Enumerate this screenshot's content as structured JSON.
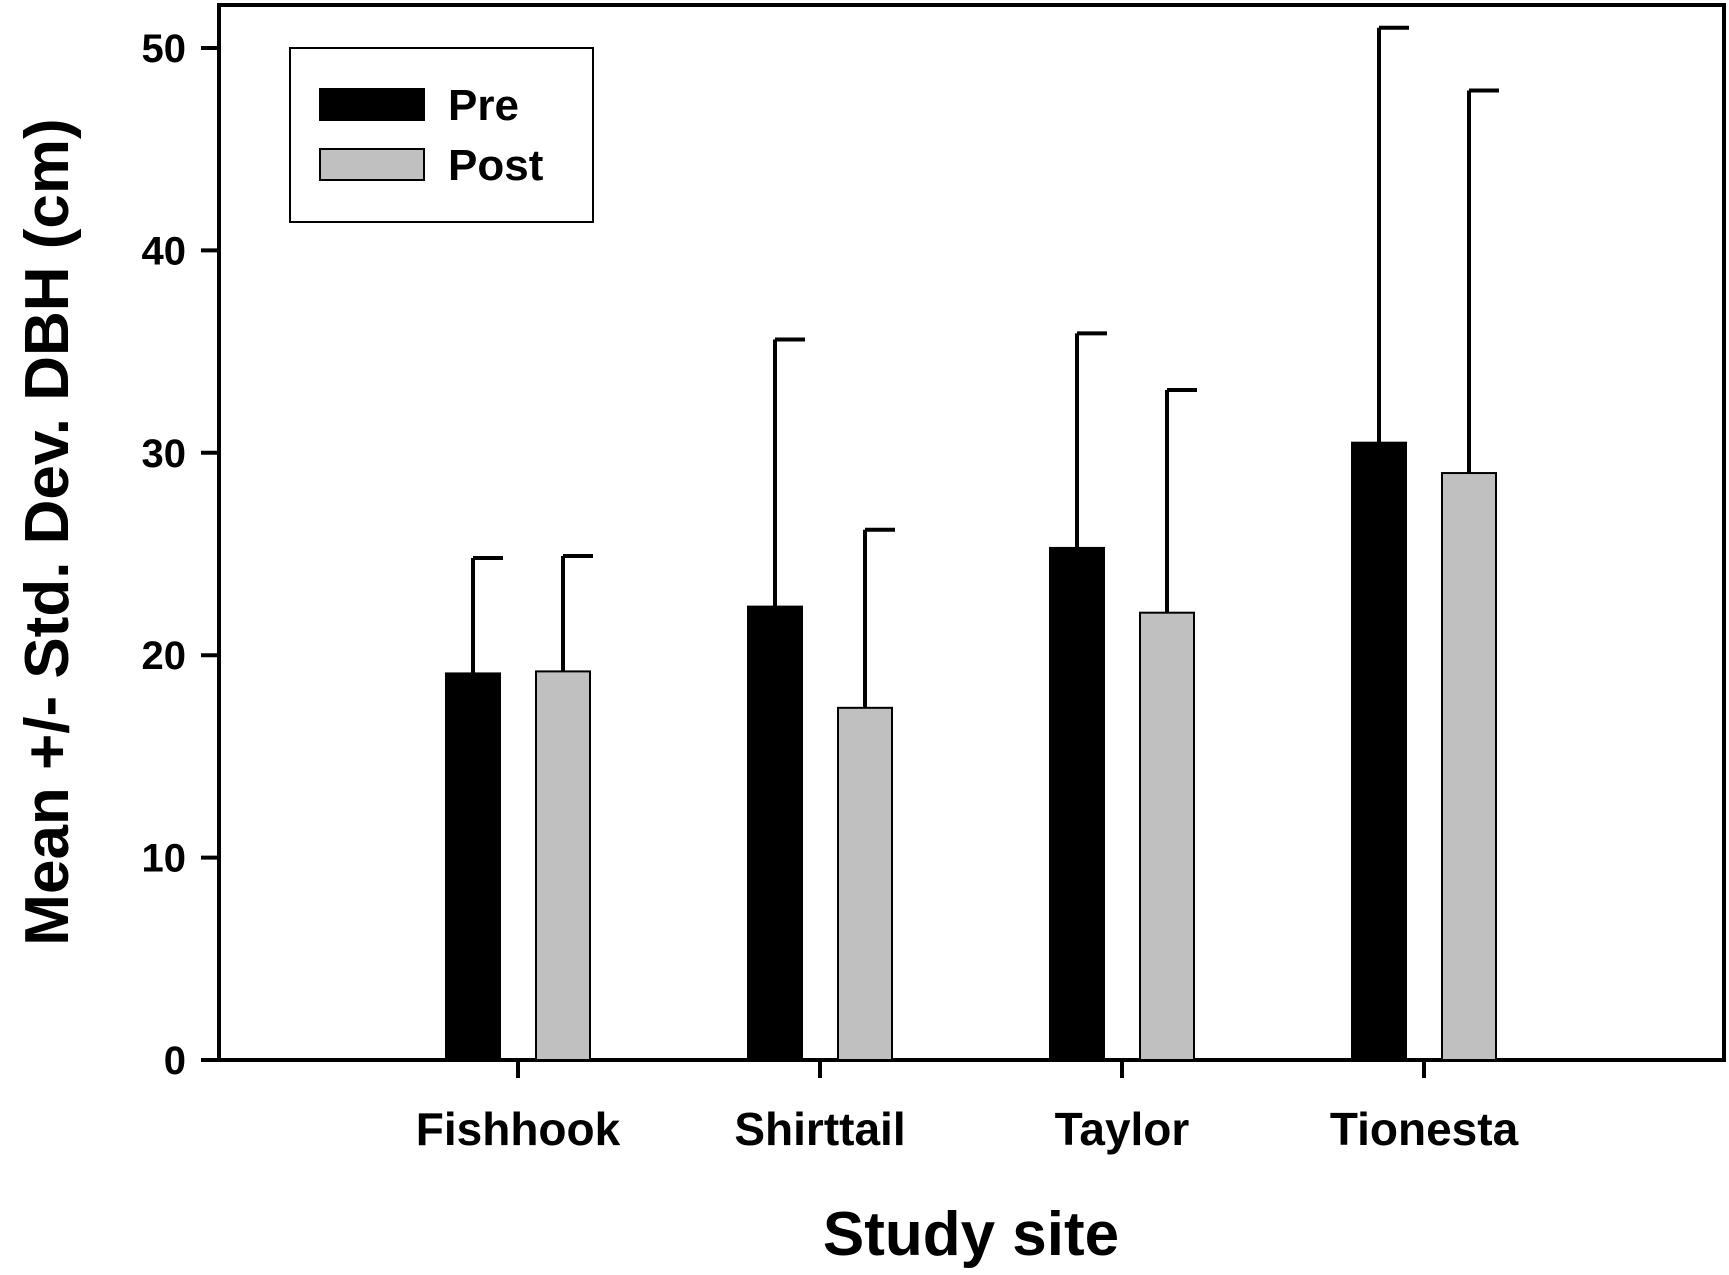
{
  "chart_data": {
    "type": "bar",
    "title": "",
    "xlabel": "Study site",
    "ylabel": "Mean +/- Std. Dev. DBH (cm)",
    "ylim": [
      0,
      50
    ],
    "yticks": [
      "0",
      "10",
      "20",
      "30",
      "40",
      "50"
    ],
    "categories": [
      "Fishhook",
      "Shirttail",
      "Taylor",
      "Tionesta"
    ],
    "series": [
      {
        "name": "Pre",
        "color": "#000000",
        "values": [
          19.1,
          22.4,
          25.3,
          30.5
        ],
        "error": [
          5.7,
          13.2,
          10.6,
          20.5
        ]
      },
      {
        "name": "Post",
        "color": "#c0c0c0",
        "values": [
          19.2,
          17.4,
          22.1,
          29.0
        ],
        "error": [
          5.7,
          8.8,
          11.0,
          18.9
        ]
      }
    ],
    "legend": {
      "position": "top-left",
      "entries": [
        "Pre",
        "Post"
      ]
    },
    "grid": false
  }
}
